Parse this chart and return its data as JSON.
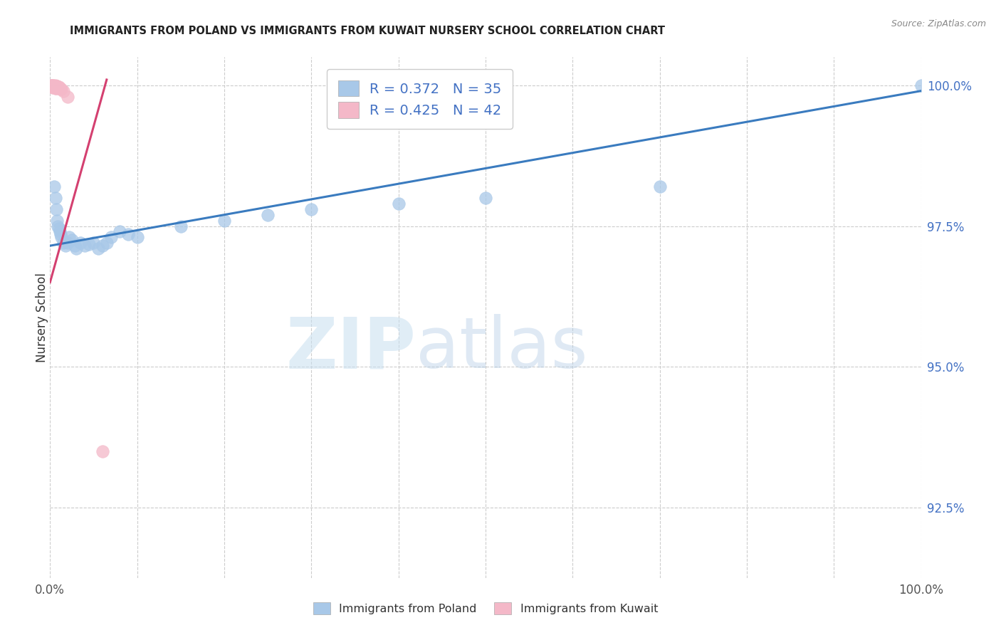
{
  "title": "IMMIGRANTS FROM POLAND VS IMMIGRANTS FROM KUWAIT NURSERY SCHOOL CORRELATION CHART",
  "source": "Source: ZipAtlas.com",
  "ylabel": "Nursery School",
  "legend_poland": "Immigrants from Poland",
  "legend_kuwait": "Immigrants from Kuwait",
  "R_poland": 0.372,
  "N_poland": 35,
  "R_kuwait": 0.425,
  "N_kuwait": 42,
  "color_poland": "#a8c8e8",
  "color_kuwait": "#f4b8c8",
  "trendline_poland": "#3a7bbf",
  "trendline_kuwait": "#d44070",
  "watermark_zip": "ZIP",
  "watermark_atlas": "atlas",
  "poland_x": [
    0.005,
    0.006,
    0.007,
    0.008,
    0.009,
    0.01,
    0.011,
    0.012,
    0.013,
    0.015,
    0.018,
    0.02,
    0.022,
    0.025,
    0.028,
    0.03,
    0.035,
    0.04,
    0.045,
    0.05,
    0.055,
    0.06,
    0.065,
    0.07,
    0.08,
    0.09,
    0.1,
    0.15,
    0.2,
    0.25,
    0.3,
    0.4,
    0.5,
    0.7,
    1.0
  ],
  "poland_y": [
    0.982,
    0.98,
    0.978,
    0.976,
    0.975,
    0.9745,
    0.974,
    0.9735,
    0.973,
    0.972,
    0.9715,
    0.972,
    0.973,
    0.9725,
    0.9715,
    0.971,
    0.972,
    0.9715,
    0.9718,
    0.972,
    0.971,
    0.9715,
    0.972,
    0.973,
    0.974,
    0.9735,
    0.973,
    0.975,
    0.976,
    0.977,
    0.978,
    0.979,
    0.98,
    0.982,
    1.0
  ],
  "kuwait_x": [
    0.001,
    0.001,
    0.002,
    0.002,
    0.002,
    0.003,
    0.003,
    0.003,
    0.003,
    0.003,
    0.004,
    0.004,
    0.004,
    0.004,
    0.005,
    0.005,
    0.005,
    0.006,
    0.006,
    0.006,
    0.006,
    0.006,
    0.006,
    0.007,
    0.007,
    0.007,
    0.007,
    0.007,
    0.008,
    0.008,
    0.008,
    0.009,
    0.009,
    0.01,
    0.01,
    0.01,
    0.011,
    0.012,
    0.013,
    0.015,
    0.02,
    0.06
  ],
  "kuwait_y": [
    1.0,
    1.0,
    1.0,
    0.9998,
    0.9997,
    1.0,
    0.9999,
    0.9998,
    0.9997,
    0.9996,
    1.0,
    0.9999,
    0.9998,
    0.9997,
    0.9999,
    0.9998,
    0.9997,
    1.0,
    0.9999,
    0.9998,
    0.9997,
    0.9996,
    0.9995,
    0.9999,
    0.9998,
    0.9997,
    0.9996,
    0.9995,
    0.9998,
    0.9997,
    0.9996,
    0.9997,
    0.9996,
    0.9997,
    0.9996,
    0.9995,
    0.9995,
    0.9994,
    0.9993,
    0.999,
    0.998,
    0.935
  ],
  "xlim": [
    0.0,
    1.0
  ],
  "ylim": [
    0.9125,
    1.005
  ],
  "yticks": [
    0.925,
    0.95,
    0.975,
    1.0
  ],
  "ytick_labels": [
    "92.5%",
    "95.0%",
    "97.5%",
    "100.0%"
  ],
  "xticks": [
    0.0,
    0.1,
    0.2,
    0.3,
    0.4,
    0.5,
    0.6,
    0.7,
    0.8,
    0.9,
    1.0
  ],
  "xtick_labels": [
    "0.0%",
    "",
    "",
    "",
    "",
    "",
    "",
    "",
    "",
    "",
    "100.0%"
  ],
  "grid_color": "#cccccc",
  "background_color": "#ffffff"
}
